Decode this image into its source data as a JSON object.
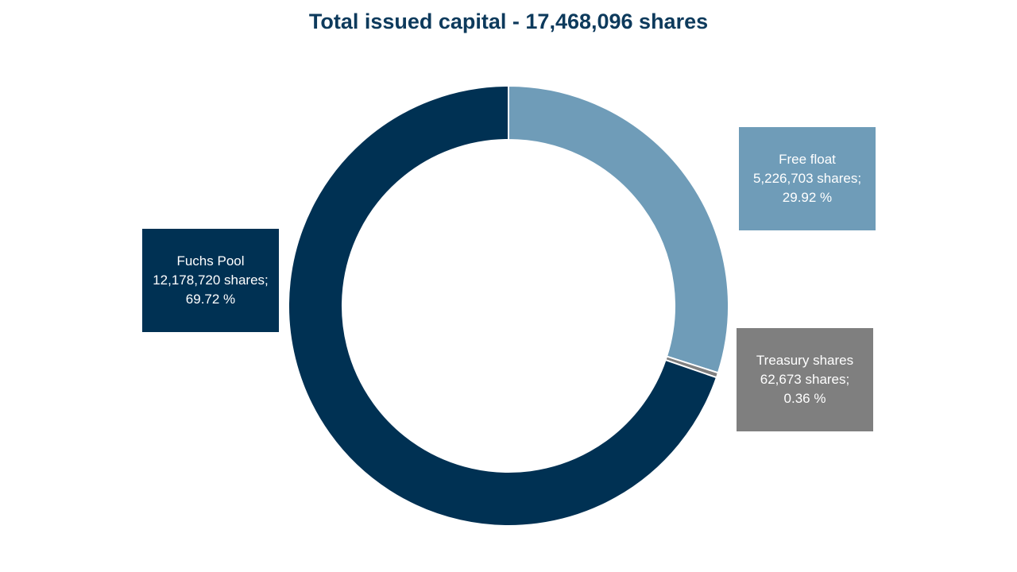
{
  "chart_data": {
    "type": "pie",
    "title": "Total issued capital - 17,468,096 shares",
    "slices": [
      {
        "name": "Free float",
        "value": 5226703,
        "percent": 29.92,
        "color": "#6f9cb8",
        "label_lines": [
          "Free float",
          "5,226,703 shares;",
          "29.92 %"
        ]
      },
      {
        "name": "Treasury shares",
        "value": 62673,
        "percent": 0.36,
        "color": "#7f7f7f",
        "label_lines": [
          "Treasury shares",
          "62,673 shares;",
          "0.36 %"
        ]
      },
      {
        "name": "Fuchs Pool",
        "value": 12178720,
        "percent": 69.72,
        "color": "#003153",
        "label_lines": [
          "Fuchs Pool",
          "12,178,720 shares;",
          "69.72 %"
        ]
      }
    ],
    "start_angle_deg": 0,
    "direction": "clockwise"
  }
}
